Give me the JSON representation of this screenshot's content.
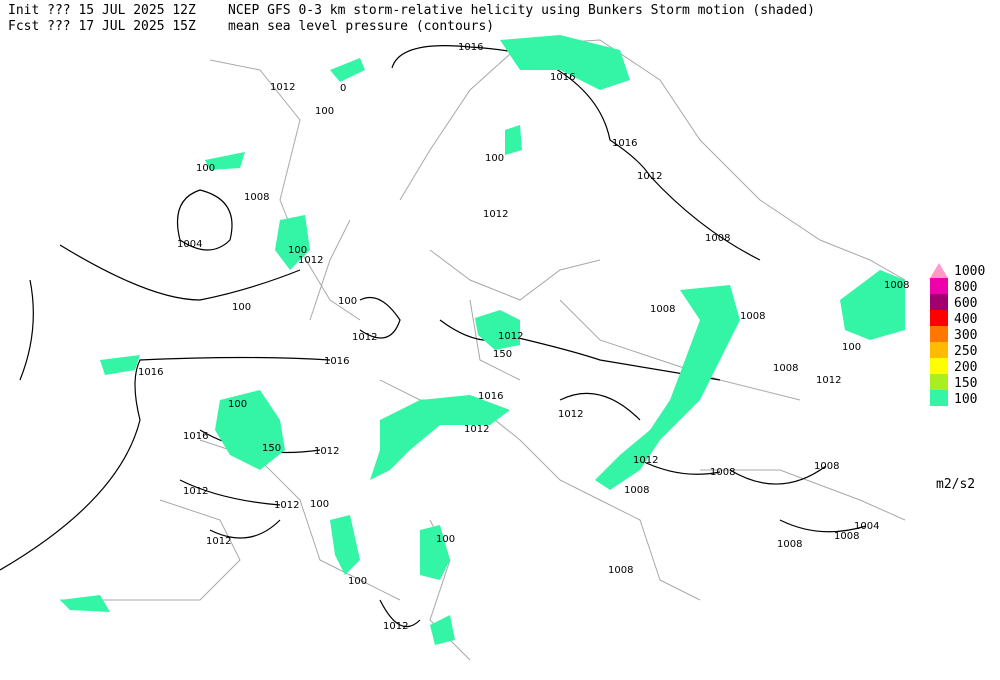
{
  "header": {
    "init": "Init  ??? 15 JUL 2025 12Z",
    "fcst": "Fcst ??? 17 JUL 2025 15Z",
    "title": "NCEP GFS 0-3 km storm-relative helicity using Bunkers Storm motion (shaded)",
    "subtitle": "mean sea level pressure (contours)"
  },
  "legend": {
    "items": [
      {
        "label": "1000",
        "color": "#ff99cc"
      },
      {
        "label": "800",
        "color": "#ee00aa"
      },
      {
        "label": "600",
        "color": "#a00070"
      },
      {
        "label": "400",
        "color": "#ff0000"
      },
      {
        "label": "300",
        "color": "#ff7700"
      },
      {
        "label": "250",
        "color": "#ffbb00"
      },
      {
        "label": "200",
        "color": "#ffff00"
      },
      {
        "label": "150",
        "color": "#aaee22"
      },
      {
        "label": "100",
        "color": "#33f5a5"
      }
    ],
    "units": "m2/s2"
  },
  "contour_labels": [
    "1016",
    "1016",
    "1012",
    "0",
    "100",
    "100",
    "1016",
    "1012",
    "1008",
    "100",
    "1004",
    "1012",
    "1012",
    "1008",
    "100",
    "1008",
    "1008",
    "1012",
    "100",
    "100",
    "1012",
    "1016",
    "1016",
    "150",
    "1008",
    "1012",
    "1016",
    "1012",
    "100",
    "1016",
    "150",
    "1012",
    "1012",
    "1012",
    "1008",
    "1008",
    "1012",
    "1012",
    "100",
    "1008",
    "1012",
    "100",
    "1004",
    "1008",
    "1008",
    "1008",
    "100",
    "1012",
    "100",
    "1008"
  ]
}
